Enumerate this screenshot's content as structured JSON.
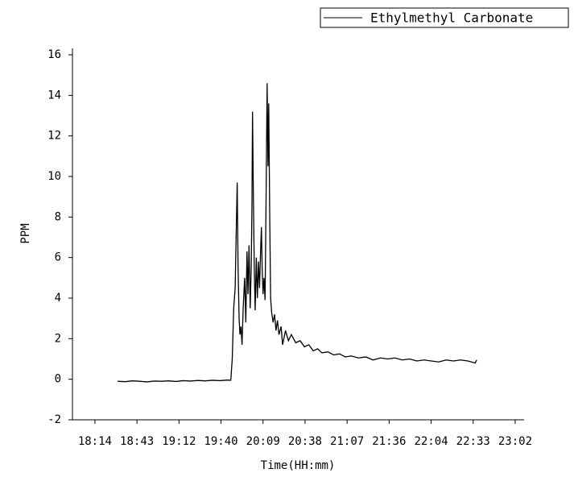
{
  "chart_data": {
    "type": "line",
    "x_label": "Time(HH:mm)",
    "y_label": "PPM",
    "xlim": [
      1079,
      1388.5
    ],
    "xticks": [
      {
        "value": 1094.4,
        "label": "18:14"
      },
      {
        "value": 1123.2,
        "label": "18:43"
      },
      {
        "value": 1152,
        "label": "19:12"
      },
      {
        "value": 1180.8,
        "label": "19:40"
      },
      {
        "value": 1209.6,
        "label": "20:09"
      },
      {
        "value": 1238.4,
        "label": "20:38"
      },
      {
        "value": 1267.2,
        "label": "21:07"
      },
      {
        "value": 1296,
        "label": "21:36"
      },
      {
        "value": 1324.8,
        "label": "22:04"
      },
      {
        "value": 1353.6,
        "label": "22:33"
      },
      {
        "value": 1382.4,
        "label": "23:02"
      }
    ],
    "ylim": [
      -2,
      16
    ],
    "yticks": [
      -2,
      0,
      2,
      4,
      6,
      8,
      10,
      12,
      14,
      16
    ],
    "legend": "top-right",
    "series": [
      {
        "name": "Ethylmethyl Carbonate",
        "color": "#000000",
        "x": [
          1110,
          1115,
          1120,
          1125,
          1130,
          1135,
          1140,
          1145,
          1150,
          1155,
          1160,
          1165,
          1170,
          1175,
          1180,
          1185,
          1187.5,
          1188.5,
          1189.5,
          1190.5,
          1191.3,
          1191.9,
          1192.5,
          1193.2,
          1193.8,
          1194.5,
          1195.2,
          1196,
          1197,
          1197.8,
          1198.6,
          1199.3,
          1200,
          1200.8,
          1201.5,
          1202,
          1202.4,
          1203,
          1203.6,
          1204.2,
          1205,
          1205.7,
          1206.5,
          1207.2,
          1208,
          1208.5,
          1209,
          1209.6,
          1210.3,
          1211,
          1211.7,
          1212.4,
          1213,
          1213.5,
          1214.2,
          1214.8,
          1215.5,
          1216.5,
          1217.5,
          1218.5,
          1219.5,
          1220.5,
          1222,
          1223,
          1225,
          1227,
          1229,
          1232,
          1235,
          1238,
          1241,
          1244,
          1247,
          1250,
          1254,
          1258,
          1262,
          1266,
          1270,
          1275,
          1280,
          1285,
          1290,
          1295,
          1300,
          1305,
          1310,
          1315,
          1320,
          1325,
          1330,
          1335,
          1340,
          1345,
          1350,
          1355,
          1356
        ],
        "values": [
          -0.1,
          -0.12,
          -0.08,
          -0.1,
          -0.13,
          -0.09,
          -0.1,
          -0.08,
          -0.11,
          -0.07,
          -0.09,
          -0.06,
          -0.08,
          -0.05,
          -0.07,
          -0.04,
          -0.05,
          1.0,
          3.5,
          4.5,
          7.5,
          9.7,
          5.5,
          3.0,
          2.2,
          2.6,
          1.7,
          3.5,
          5.0,
          2.8,
          6.3,
          4.2,
          6.6,
          3.5,
          5.5,
          8.5,
          13.2,
          9.0,
          5.5,
          3.4,
          6.0,
          4.0,
          5.8,
          4.5,
          6.5,
          7.5,
          5.5,
          4.2,
          5.0,
          3.9,
          9.0,
          14.6,
          10.5,
          13.6,
          8.0,
          4.0,
          3.3,
          2.8,
          3.2,
          2.4,
          2.9,
          2.2,
          2.6,
          1.7,
          2.4,
          1.9,
          2.2,
          1.8,
          1.9,
          1.6,
          1.7,
          1.4,
          1.5,
          1.3,
          1.35,
          1.2,
          1.25,
          1.1,
          1.15,
          1.05,
          1.1,
          0.95,
          1.05,
          1.0,
          1.05,
          0.95,
          1.0,
          0.9,
          0.95,
          0.9,
          0.85,
          0.95,
          0.9,
          0.95,
          0.9,
          0.8,
          0.95
        ]
      }
    ]
  }
}
